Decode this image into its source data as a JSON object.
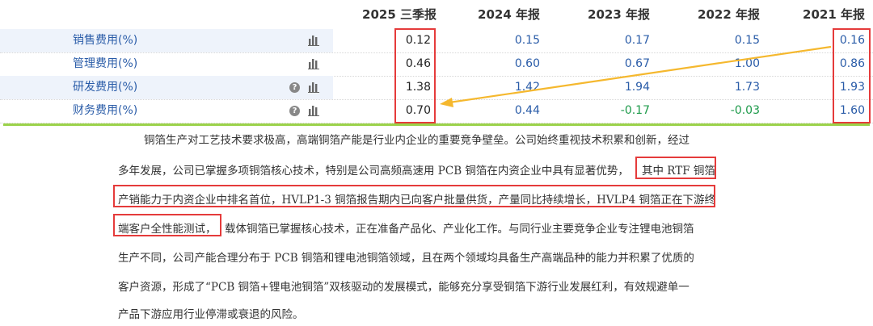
{
  "table": {
    "headers": [
      "2025 三季报",
      "2024 年报",
      "2023 年报",
      "2022 年报",
      "2021 年报"
    ],
    "rows": [
      {
        "label": "销售费用(%)",
        "help_icon": false,
        "values": [
          "0.12",
          "0.15",
          "0.17",
          "0.15",
          "0.16"
        ]
      },
      {
        "label": "管理费用(%)",
        "help_icon": false,
        "values": [
          "0.46",
          "0.60",
          "0.67",
          "1.00",
          "0.86"
        ]
      },
      {
        "label": "研发费用(%)",
        "help_icon": true,
        "values": [
          "1.38",
          "1.42",
          "1.94",
          "1.73",
          "1.93"
        ]
      },
      {
        "label": "财务费用(%)",
        "help_icon": true,
        "values": [
          "0.70",
          "0.44",
          "-0.17",
          "-0.03",
          "1.60"
        ]
      }
    ],
    "help_icon_text": "?",
    "colors": {
      "value_blue": "#2a5ca8",
      "value_green": "#1d9a4a",
      "highlight_red": "#e53b3b",
      "arrow_yellow": "#f5b82e",
      "divider_green": "#9bd24a"
    }
  },
  "document": {
    "lines": [
      "铜箔生产对工艺技术要求极高，高端铜箔产能是行业内企业的重要竞争壁垒。公司始终重视技术积累和创新，经过",
      "多年发展，公司已掌握多项铜箔核心技术，特别是公司高频高速用 PCB 铜箔在内资企业中具有显著优势，",
      "其中 RTF 铜箔",
      "产销能力于内资企业中排名首位，HVLP1-3 铜箔报告期内已向客户批量供货，产量同比持续增长，HVLP4 铜箔正在下游终",
      "端客户全性能测试，",
      "载体铜箔已掌握核心技术，正在准备产品化、产业化工作。与同行业主要竞争企业专注锂电池铜箔",
      "生产不同，公司产能合理分布于 PCB 铜箔和锂电池铜箔领域，且在两个领域均具备生产高端品种的能力并积累了优质的",
      "客户资源，形成了“PCB 铜箔+锂电池铜箔”双核驱动的发展模式，能够充分享受铜箔下游行业发展红利，有效规避单一",
      "产品下游应用行业停滞或衰退的风险。"
    ]
  }
}
